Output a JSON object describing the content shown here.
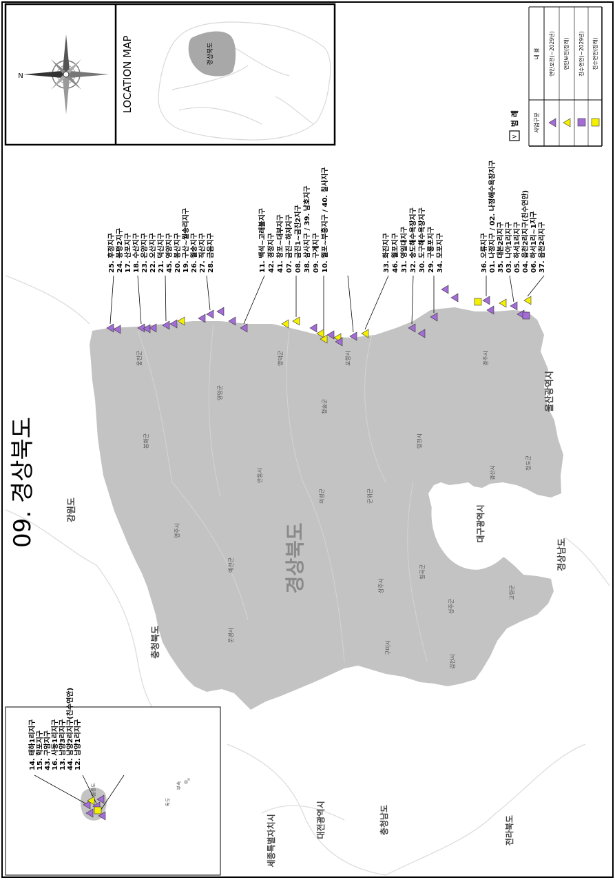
{
  "title": "09. 경상북도",
  "location_map": {
    "title": "LOCATION MAP",
    "highlight_label": "경상북도"
  },
  "compass": {
    "north_label": "N"
  },
  "legend": {
    "heading": "범 례",
    "col_type": "사업구분",
    "col_content": "내 용",
    "items": [
      {
        "symbol": "triangle",
        "color": "#a36cd6",
        "label": "연안보전(~2029년)"
      },
      {
        "symbol": "triangle",
        "color": "#f5f000",
        "label": "연안보전(장래)"
      },
      {
        "symbol": "square",
        "color": "#a36cd6",
        "label": "친수연안(~2029년)"
      },
      {
        "symbol": "square",
        "color": "#f5f000",
        "label": "친수연안(장래)"
      }
    ]
  },
  "regions": {
    "main": "경상북도",
    "neighbors": [
      "강원도",
      "충청북도",
      "경상남도",
      "울산광역시",
      "대구광역시",
      "세종특별자치시",
      "대전광역시",
      "충청남도",
      "전라북도"
    ],
    "counties": [
      "울진군",
      "봉화군",
      "영양군",
      "영주시",
      "안동시",
      "영덕군",
      "청송군",
      "예천군",
      "의성군",
      "포항시",
      "문경시",
      "군위군",
      "영천시",
      "경주시",
      "상주시",
      "구미시",
      "칠곡군",
      "경산시",
      "청도군",
      "김천시",
      "성주군",
      "고령군"
    ],
    "island": "울릉도",
    "dokdo": "독도",
    "island_labels": [
      "부속"
    ]
  },
  "site_groups": {
    "ulleung": [
      "14. 태하1리지구",
      "15. 학포지구",
      "43. 구암지구",
      "16. 사동1리지구",
      "13. 남양3리지구",
      "44. 남양2리지구(친수연안)",
      "12. 남양1리지구"
    ],
    "north": [
      "25. 후정지구",
      "24. 봉평2지구",
      "17. 산포지구",
      "18. 수산지구",
      "23. 온양지구",
      "22. 오산지구",
      "21. 덕신지구",
      "45. 영양지구",
      "20. 봉산지구",
      "19. 구산~월송리지구",
      "26. 월송지구",
      "27. 직산지구",
      "28. 금음지구"
    ],
    "yeongdeok": [
      "11. 백석~고래불지구",
      "42. 경정지구",
      "41. 창포~대부지구",
      "07. 금진~하저지구",
      "08. 금진1~금진2지구",
      "38. 삼사지구 / 39. 남호지구",
      "09. 구계지구",
      "10. 월포~부흥지구 / 40. 칠사지구"
    ],
    "pohang": [
      "33. 화진지구",
      "46. 월포지구",
      "31. 영일대지구",
      "32. 송도해수욕장지구",
      "30. 도구해수욕장지구",
      "29. 구룡포지구",
      "34. 모포지구"
    ],
    "gyeongju": [
      "36. 오류지구",
      "01. 나정지구 / 02. 나정해수욕장지구",
      "35. 대본2리지구",
      "03. 나아1리지구",
      "05. 하서1리지구",
      "04. 읍천2리지구(친수연안)",
      "06. 하서1리~1지구",
      "37. 읍천2리지구"
    ]
  }
}
